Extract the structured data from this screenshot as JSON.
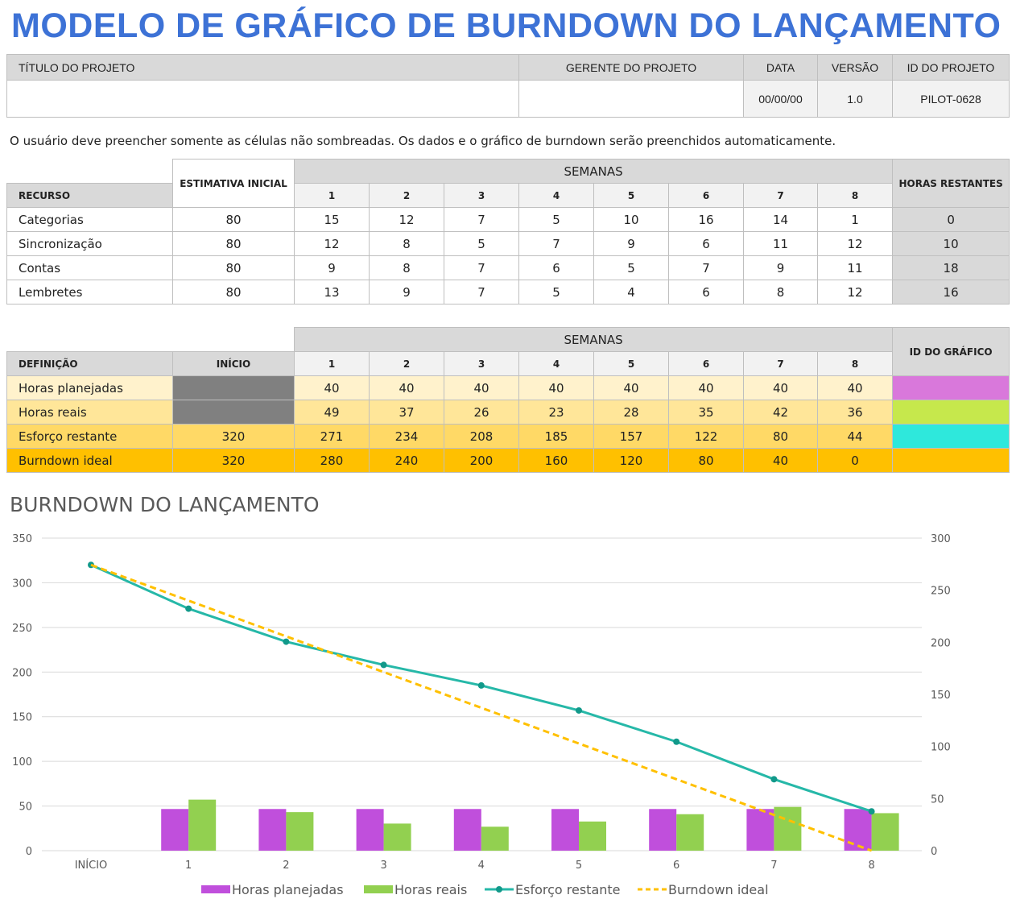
{
  "title": "MODELO DE GRÁFICO DE BURNDOWN DO LANÇAMENTO",
  "project": {
    "title_label": "TÍTULO DO PROJETO",
    "title_value": "",
    "manager_label": "GERENTE DO PROJETO",
    "manager_value": "",
    "date_label": "DATA",
    "date_value": "00/00/00",
    "version_label": "VERSÃO",
    "version_value": "1.0",
    "id_label": "ID DO PROJETO",
    "id_value": "PILOT-0628"
  },
  "note": "O usuário deve preencher somente as células não sombreadas.  Os dados e o gráfico de burndown serão preenchidos automaticamente.",
  "resources": {
    "col_resource": "RECURSO",
    "col_estimate": "ESTIMATIVA INICIAL",
    "col_weeks": "SEMANAS",
    "col_remaining": "HORAS RESTANTES",
    "weeks": [
      "1",
      "2",
      "3",
      "4",
      "5",
      "6",
      "7",
      "8"
    ],
    "rows": [
      {
        "name": "Categorias",
        "estimate": "80",
        "weeks": [
          "15",
          "12",
          "7",
          "5",
          "10",
          "16",
          "14",
          "1"
        ],
        "remaining": "0"
      },
      {
        "name": "Sincronização",
        "estimate": "80",
        "weeks": [
          "12",
          "8",
          "5",
          "7",
          "9",
          "6",
          "11",
          "12"
        ],
        "remaining": "10"
      },
      {
        "name": "Contas",
        "estimate": "80",
        "weeks": [
          "9",
          "8",
          "7",
          "6",
          "5",
          "7",
          "9",
          "11"
        ],
        "remaining": "18"
      },
      {
        "name": "Lembretes",
        "estimate": "80",
        "weeks": [
          "13",
          "9",
          "7",
          "5",
          "4",
          "6",
          "8",
          "12"
        ],
        "remaining": "16"
      }
    ]
  },
  "summary": {
    "col_definition": "DEFINIÇÃO",
    "col_start": "INÍCIO",
    "col_weeks": "SEMANAS",
    "col_chart_id": "ID DO GRÁFICO",
    "rows": [
      {
        "name": "Horas planejadas",
        "start": "",
        "weeks": [
          "40",
          "40",
          "40",
          "40",
          "40",
          "40",
          "40",
          "40"
        ],
        "bg": "#fff2cc",
        "id_color": "#d978db"
      },
      {
        "name": "Horas reais",
        "start": "",
        "weeks": [
          "49",
          "37",
          "26",
          "23",
          "28",
          "35",
          "42",
          "36"
        ],
        "bg": "#ffe699",
        "id_color": "#c6e84c"
      },
      {
        "name": "Esforço restante",
        "start": "320",
        "weeks": [
          "271",
          "234",
          "208",
          "185",
          "157",
          "122",
          "80",
          "44"
        ],
        "bg": "#ffd966",
        "id_color": "#2ee8dc"
      },
      {
        "name": "Burndown ideal",
        "start": "320",
        "weeks": [
          "280",
          "240",
          "200",
          "160",
          "120",
          "80",
          "40",
          "0"
        ],
        "bg": "#ffc000",
        "id_color": "#ffc000"
      }
    ]
  },
  "chart_title": "BURNDOWN DO LANÇAMENTO",
  "chart_data": {
    "type": "bar+line",
    "categories": [
      "INÍCIO",
      "1",
      "2",
      "3",
      "4",
      "5",
      "6",
      "7",
      "8"
    ],
    "left_axis": {
      "ylim": [
        0,
        350
      ],
      "ticks": [
        "0",
        "50",
        "100",
        "150",
        "200",
        "250",
        "300",
        "350"
      ]
    },
    "right_axis": {
      "ylim": [
        0,
        300
      ],
      "ticks": [
        "0",
        "50",
        "100",
        "150",
        "200",
        "250",
        "300"
      ]
    },
    "grid": true,
    "legend": "bottom",
    "series": [
      {
        "name": "Horas planejadas",
        "type": "bar",
        "axis": "right",
        "color": "#c04fdc",
        "values": [
          null,
          40,
          40,
          40,
          40,
          40,
          40,
          40,
          40
        ]
      },
      {
        "name": "Horas reais",
        "type": "bar",
        "axis": "right",
        "color": "#92d050",
        "values": [
          null,
          49,
          37,
          26,
          23,
          28,
          35,
          42,
          36
        ]
      },
      {
        "name": "Esforço restante",
        "type": "line",
        "axis": "left",
        "color": "#26b8a8",
        "values": [
          320,
          271,
          234,
          208,
          185,
          157,
          122,
          80,
          44
        ]
      },
      {
        "name": "Burndown ideal",
        "type": "dashed-line",
        "axis": "left",
        "color": "#ffc000",
        "values": [
          320,
          280,
          240,
          200,
          160,
          120,
          80,
          40,
          0
        ]
      }
    ]
  }
}
